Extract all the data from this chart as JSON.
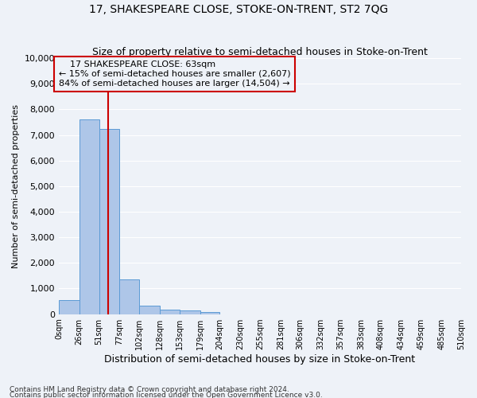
{
  "title": "17, SHAKESPEARE CLOSE, STOKE-ON-TRENT, ST2 7QG",
  "subtitle": "Size of property relative to semi-detached houses in Stoke-on-Trent",
  "xlabel": "Distribution of semi-detached houses by size in Stoke-on-Trent",
  "ylabel": "Number of semi-detached properties",
  "bar_color": "#aec6e8",
  "bar_edge_color": "#5b9bd5",
  "annotation_box_color": "#cc0000",
  "vline_color": "#cc0000",
  "property_size": 63,
  "property_label": "17 SHAKESPEARE CLOSE: 63sqm",
  "pct_smaller": 15,
  "pct_larger": 84,
  "count_smaller": "2,607",
  "count_larger": "14,504",
  "bin_edges": [
    0,
    26,
    51,
    77,
    102,
    128,
    153,
    179,
    204,
    230,
    255,
    281,
    306,
    332,
    357,
    383,
    408,
    434,
    459,
    485,
    510
  ],
  "bar_heights": [
    550,
    7620,
    7250,
    1350,
    330,
    180,
    130,
    90,
    0,
    0,
    0,
    0,
    0,
    0,
    0,
    0,
    0,
    0,
    0,
    0
  ],
  "tick_labels": [
    "0sqm",
    "26sqm",
    "51sqm",
    "77sqm",
    "102sqm",
    "128sqm",
    "153sqm",
    "179sqm",
    "204sqm",
    "230sqm",
    "255sqm",
    "281sqm",
    "306sqm",
    "332sqm",
    "357sqm",
    "383sqm",
    "408sqm",
    "434sqm",
    "459sqm",
    "485sqm",
    "510sqm"
  ],
  "ylim": [
    0,
    10000
  ],
  "yticks": [
    0,
    1000,
    2000,
    3000,
    4000,
    5000,
    6000,
    7000,
    8000,
    9000,
    10000
  ],
  "footer1": "Contains HM Land Registry data © Crown copyright and database right 2024.",
  "footer2": "Contains public sector information licensed under the Open Government Licence v3.0.",
  "bg_color": "#eef2f8",
  "grid_color": "#ffffff"
}
